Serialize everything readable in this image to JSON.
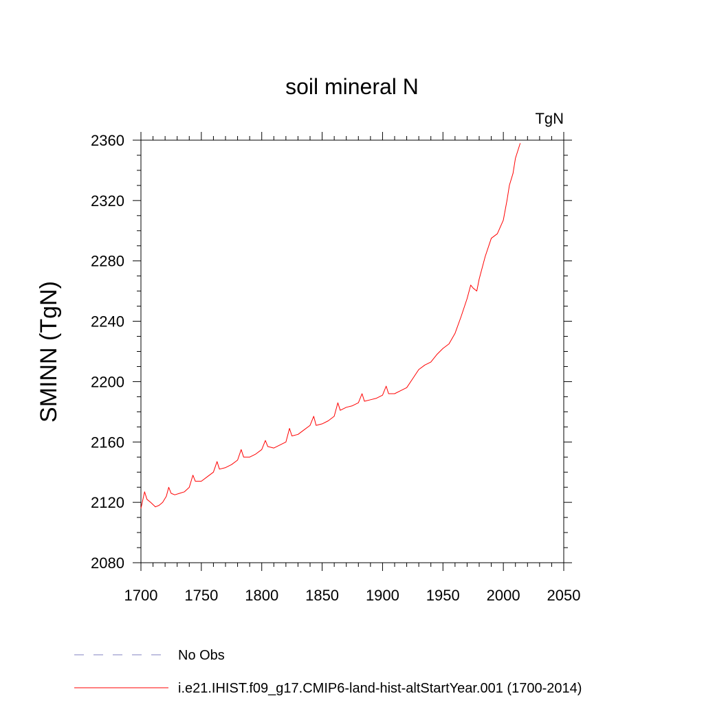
{
  "chart_data": {
    "type": "line",
    "title": "soil mineral N",
    "units_label": "TgN",
    "ylabel": "SMINN  (TgN)",
    "xlabel": "",
    "xlim": [
      1700,
      2050
    ],
    "ylim": [
      2080,
      2360
    ],
    "x_ticks": [
      1700,
      1750,
      1800,
      1850,
      1900,
      1950,
      2000,
      2050
    ],
    "y_ticks": [
      2080,
      2120,
      2160,
      2200,
      2240,
      2280,
      2320,
      2360
    ],
    "grid": false,
    "legend_position": "bottom-left",
    "series": [
      {
        "name": "No Obs",
        "color": "#8080c0",
        "style": "dashed",
        "x": [],
        "y": []
      },
      {
        "name": "i.e21.IHIST.f09_g17.CMIP6-land-hist-altStartYear.001 (1700-2014)",
        "color": "#ff0000",
        "style": "solid",
        "x": [
          1700,
          1703,
          1705,
          1708,
          1712,
          1715,
          1718,
          1721,
          1723,
          1725,
          1728,
          1732,
          1736,
          1740,
          1743,
          1745,
          1750,
          1755,
          1760,
          1763,
          1765,
          1770,
          1775,
          1780,
          1783,
          1785,
          1790,
          1795,
          1800,
          1803,
          1805,
          1810,
          1815,
          1820,
          1823,
          1825,
          1830,
          1835,
          1840,
          1843,
          1845,
          1850,
          1855,
          1860,
          1863,
          1865,
          1870,
          1875,
          1880,
          1883,
          1885,
          1890,
          1895,
          1900,
          1903,
          1905,
          1910,
          1915,
          1920,
          1925,
          1930,
          1935,
          1940,
          1945,
          1950,
          1955,
          1960,
          1965,
          1970,
          1973,
          1975,
          1978,
          1980,
          1985,
          1990,
          1995,
          2000,
          2003,
          2005,
          2008,
          2010,
          2012,
          2014
        ],
        "y": [
          2116,
          2127,
          2122,
          2120,
          2117,
          2118,
          2120,
          2124,
          2130,
          2126,
          2125,
          2126,
          2127,
          2130,
          2138,
          2134,
          2134,
          2137,
          2140,
          2147,
          2142,
          2143,
          2145,
          2148,
          2155,
          2150,
          2150,
          2152,
          2155,
          2161,
          2157,
          2156,
          2158,
          2160,
          2169,
          2164,
          2165,
          2168,
          2171,
          2177,
          2171,
          2172,
          2174,
          2177,
          2186,
          2181,
          2183,
          2184,
          2186,
          2192,
          2187,
          2188,
          2189,
          2191,
          2197,
          2192,
          2192,
          2194,
          2196,
          2202,
          2208,
          2211,
          2213,
          2218,
          2222,
          2225,
          2232,
          2243,
          2255,
          2264,
          2262,
          2260,
          2268,
          2283,
          2295,
          2298,
          2307,
          2320,
          2330,
          2338,
          2348,
          2353,
          2358
        ]
      }
    ]
  }
}
